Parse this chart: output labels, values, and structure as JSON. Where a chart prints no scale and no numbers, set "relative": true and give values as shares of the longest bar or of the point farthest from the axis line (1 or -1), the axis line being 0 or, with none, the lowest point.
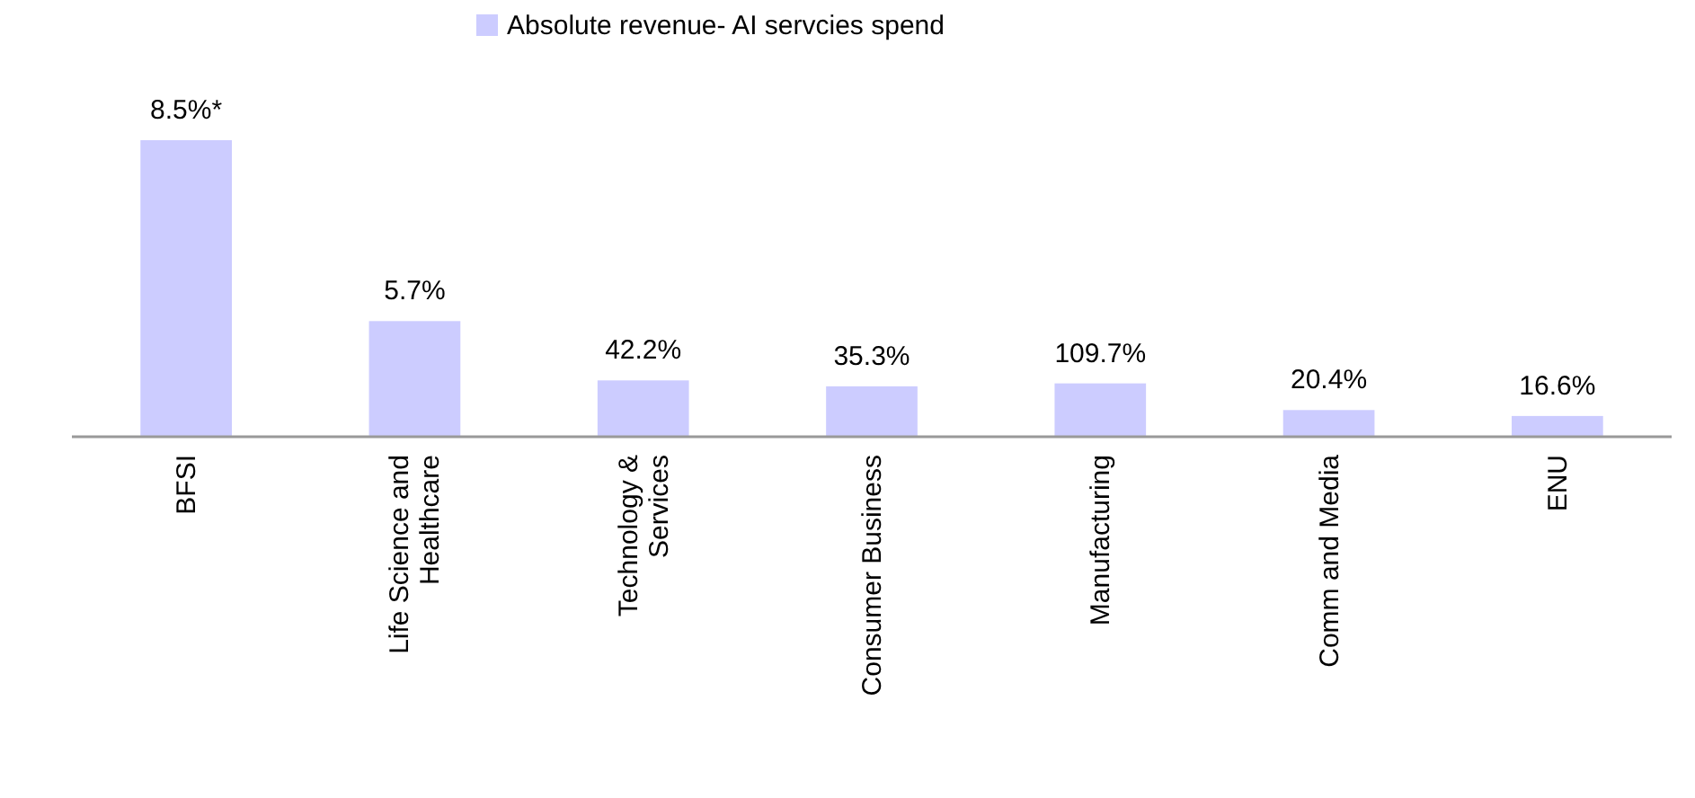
{
  "chart_data": {
    "type": "bar",
    "relative": true,
    "categories": [
      "BFSI",
      "Life Science and Healthcare",
      "Technology & Services",
      "Consumer Business",
      "Manufacturing",
      "Comm and Media",
      "ENU"
    ],
    "series": [
      {
        "name": "Absolute revenue- AI servcies spend",
        "color": "#ccccff",
        "values": [
          1,
          0.39,
          0.19,
          0.17,
          0.18,
          0.09,
          0.07
        ]
      }
    ],
    "annotations": [
      {
        "text": "8.5%*",
        "x": "BFSI",
        "y": 1
      },
      {
        "text": "5.7%",
        "x": "Life Science and Healthcare",
        "y": 0.39
      },
      {
        "text": "42.2%",
        "x": "Technology & Services",
        "y": 0.19
      },
      {
        "text": "35.3%",
        "x": "Consumer Business",
        "y": 0.17
      },
      {
        "text": "109.7%",
        "x": "Manufacturing",
        "y": 0.18
      },
      {
        "text": "20.4%",
        "x": "Comm and Media",
        "y": 0.09
      },
      {
        "text": "16.6%",
        "x": "ENU",
        "y": 0.07
      }
    ],
    "legend": "top"
  }
}
